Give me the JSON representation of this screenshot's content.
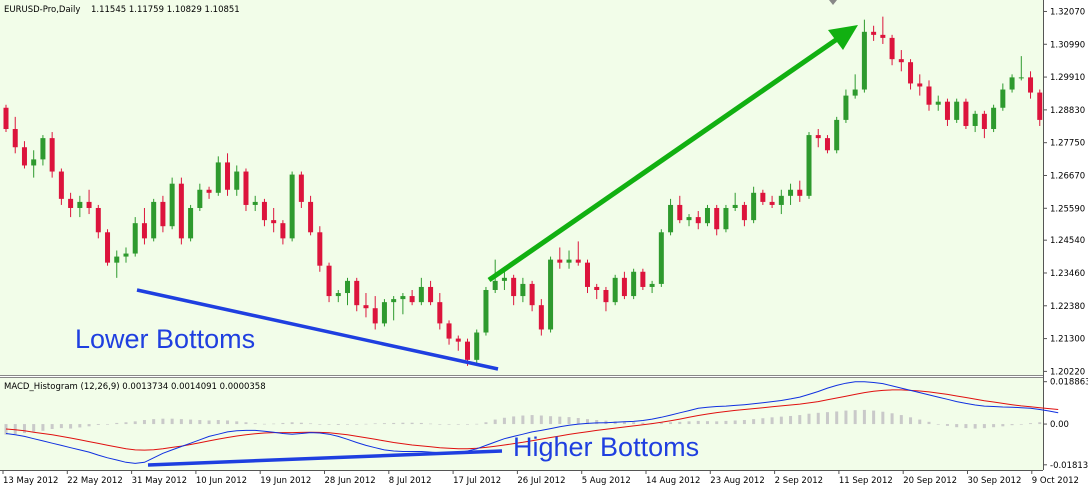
{
  "chart_data": [
    {
      "type": "candlestick",
      "symbol_header": "EURUSD-Pro,Daily",
      "ohlc_header": "1.11545 1.11759 1.10829 1.10851",
      "ylim": [
        1.202,
        1.3225
      ],
      "y_ticks": [
        "1.32070",
        "1.30990",
        "1.29910",
        "1.28830",
        "1.27750",
        "1.26670",
        "1.25590",
        "1.24540",
        "1.23460",
        "1.22380",
        "1.21300",
        "1.20220"
      ],
      "x_ticks": [
        "13 May 2012",
        "22 May 2012",
        "31 May 2012",
        "10 Jun 2012",
        "19 Jun 2012",
        "28 Jun 2012",
        "8 Jul 2012",
        "17 Jul 2012",
        "26 Jul 2012",
        "5 Aug 2012",
        "14 Aug 2012",
        "23 Aug 2012",
        "2 Sep 2012",
        "11 Sep 2012",
        "20 Sep 2012",
        "30 Sep 2012",
        "9 Oct 2012"
      ],
      "up_color": "#2e9a2e",
      "down_color": "#dc143c",
      "candles": [
        [
          1.289,
          1.29,
          1.281,
          1.282
        ],
        [
          1.282,
          1.286,
          1.274,
          1.276
        ],
        [
          1.276,
          1.278,
          1.269,
          1.27
        ],
        [
          1.27,
          1.275,
          1.266,
          1.272
        ],
        [
          1.272,
          1.28,
          1.27,
          1.279
        ],
        [
          1.279,
          1.281,
          1.266,
          1.268
        ],
        [
          1.268,
          1.269,
          1.257,
          1.259
        ],
        [
          1.259,
          1.261,
          1.253,
          1.256
        ],
        [
          1.256,
          1.26,
          1.253,
          1.258
        ],
        [
          1.258,
          1.262,
          1.254,
          1.256
        ],
        [
          1.256,
          1.257,
          1.246,
          1.248
        ],
        [
          1.248,
          1.249,
          1.237,
          1.238
        ],
        [
          1.238,
          1.242,
          1.233,
          1.24
        ],
        [
          1.24,
          1.243,
          1.238,
          1.241
        ],
        [
          1.241,
          1.253,
          1.24,
          1.251
        ],
        [
          1.251,
          1.256,
          1.244,
          1.246
        ],
        [
          1.246,
          1.259,
          1.245,
          1.258
        ],
        [
          1.258,
          1.26,
          1.248,
          1.25
        ],
        [
          1.25,
          1.266,
          1.249,
          1.264
        ],
        [
          1.264,
          1.266,
          1.244,
          1.246
        ],
        [
          1.246,
          1.257,
          1.245,
          1.256
        ],
        [
          1.256,
          1.264,
          1.255,
          1.262
        ],
        [
          1.262,
          1.263,
          1.259,
          1.261
        ],
        [
          1.261,
          1.273,
          1.26,
          1.271
        ],
        [
          1.271,
          1.274,
          1.26,
          1.262
        ],
        [
          1.262,
          1.27,
          1.26,
          1.268
        ],
        [
          1.268,
          1.269,
          1.255,
          1.257
        ],
        [
          1.257,
          1.26,
          1.255,
          1.258
        ],
        [
          1.258,
          1.259,
          1.25,
          1.252
        ],
        [
          1.252,
          1.256,
          1.248,
          1.251
        ],
        [
          1.251,
          1.252,
          1.244,
          1.246
        ],
        [
          1.246,
          1.268,
          1.245,
          1.267
        ],
        [
          1.267,
          1.268,
          1.256,
          1.258
        ],
        [
          1.258,
          1.26,
          1.247,
          1.248
        ],
        [
          1.248,
          1.25,
          1.235,
          1.237
        ],
        [
          1.237,
          1.238,
          1.225,
          1.227
        ],
        [
          1.227,
          1.229,
          1.225,
          1.228
        ],
        [
          1.228,
          1.233,
          1.224,
          1.232
        ],
        [
          1.232,
          1.233,
          1.222,
          1.224
        ],
        [
          1.224,
          1.228,
          1.22,
          1.223
        ],
        [
          1.223,
          1.227,
          1.216,
          1.218
        ],
        [
          1.218,
          1.226,
          1.217,
          1.225
        ],
        [
          1.225,
          1.227,
          1.219,
          1.226
        ],
        [
          1.226,
          1.228,
          1.221,
          1.227
        ],
        [
          1.227,
          1.229,
          1.224,
          1.225
        ],
        [
          1.225,
          1.233,
          1.224,
          1.23
        ],
        [
          1.23,
          1.232,
          1.224,
          1.225
        ],
        [
          1.225,
          1.228,
          1.216,
          1.218
        ],
        [
          1.218,
          1.219,
          1.211,
          1.213
        ],
        [
          1.213,
          1.214,
          1.209,
          1.212
        ],
        [
          1.212,
          1.213,
          1.204,
          1.206
        ],
        [
          1.206,
          1.216,
          1.205,
          1.215
        ],
        [
          1.215,
          1.23,
          1.214,
          1.229
        ],
        [
          1.229,
          1.239,
          1.228,
          1.232
        ],
        [
          1.232,
          1.236,
          1.229,
          1.233
        ],
        [
          1.233,
          1.234,
          1.224,
          1.227
        ],
        [
          1.227,
          1.233,
          1.225,
          1.231
        ],
        [
          1.231,
          1.232,
          1.222,
          1.224
        ],
        [
          1.224,
          1.226,
          1.214,
          1.216
        ],
        [
          1.216,
          1.24,
          1.215,
          1.239
        ],
        [
          1.239,
          1.243,
          1.236,
          1.238
        ],
        [
          1.238,
          1.242,
          1.236,
          1.239
        ],
        [
          1.239,
          1.245,
          1.237,
          1.238
        ],
        [
          1.238,
          1.239,
          1.228,
          1.23
        ],
        [
          1.23,
          1.231,
          1.226,
          1.229
        ],
        [
          1.229,
          1.23,
          1.222,
          1.225
        ],
        [
          1.225,
          1.234,
          1.224,
          1.233
        ],
        [
          1.233,
          1.235,
          1.226,
          1.227
        ],
        [
          1.227,
          1.236,
          1.226,
          1.235
        ],
        [
          1.235,
          1.236,
          1.229,
          1.23
        ],
        [
          1.23,
          1.232,
          1.228,
          1.231
        ],
        [
          1.231,
          1.249,
          1.23,
          1.248
        ],
        [
          1.248,
          1.259,
          1.247,
          1.257
        ],
        [
          1.257,
          1.26,
          1.251,
          1.252
        ],
        [
          1.252,
          1.254,
          1.25,
          1.253
        ],
        [
          1.253,
          1.255,
          1.249,
          1.251
        ],
        [
          1.251,
          1.257,
          1.25,
          1.256
        ],
        [
          1.256,
          1.257,
          1.247,
          1.249
        ],
        [
          1.249,
          1.257,
          1.248,
          1.256
        ],
        [
          1.256,
          1.261,
          1.255,
          1.257
        ],
        [
          1.257,
          1.258,
          1.25,
          1.252
        ],
        [
          1.252,
          1.263,
          1.251,
          1.261
        ],
        [
          1.261,
          1.262,
          1.257,
          1.258
        ],
        [
          1.258,
          1.26,
          1.256,
          1.257
        ],
        [
          1.257,
          1.262,
          1.254,
          1.26
        ],
        [
          1.26,
          1.264,
          1.257,
          1.262
        ],
        [
          1.262,
          1.265,
          1.258,
          1.26
        ],
        [
          1.26,
          1.281,
          1.259,
          1.28
        ],
        [
          1.28,
          1.282,
          1.276,
          1.279
        ],
        [
          1.279,
          1.28,
          1.274,
          1.275
        ],
        [
          1.275,
          1.286,
          1.274,
          1.285
        ],
        [
          1.285,
          1.295,
          1.284,
          1.293
        ],
        [
          1.293,
          1.3,
          1.292,
          1.295
        ],
        [
          1.295,
          1.318,
          1.294,
          1.314
        ],
        [
          1.314,
          1.316,
          1.311,
          1.313
        ],
        [
          1.313,
          1.319,
          1.31,
          1.312
        ],
        [
          1.312,
          1.313,
          1.303,
          1.305
        ],
        [
          1.305,
          1.308,
          1.301,
          1.304
        ],
        [
          1.304,
          1.305,
          1.295,
          1.297
        ],
        [
          1.297,
          1.3,
          1.293,
          1.296
        ],
        [
          1.296,
          1.298,
          1.288,
          1.29
        ],
        [
          1.29,
          1.293,
          1.288,
          1.291
        ],
        [
          1.291,
          1.292,
          1.283,
          1.285
        ],
        [
          1.285,
          1.292,
          1.284,
          1.291
        ],
        [
          1.291,
          1.292,
          1.282,
          1.283
        ],
        [
          1.283,
          1.288,
          1.281,
          1.287
        ],
        [
          1.287,
          1.288,
          1.279,
          1.282
        ],
        [
          1.282,
          1.29,
          1.281,
          1.289
        ],
        [
          1.289,
          1.297,
          1.288,
          1.295
        ],
        [
          1.295,
          1.3,
          1.294,
          1.299
        ],
        [
          1.299,
          1.306,
          1.298,
          1.299
        ],
        [
          1.299,
          1.301,
          1.292,
          1.294
        ],
        [
          1.294,
          1.295,
          1.283,
          1.285
        ],
        [
          1.285,
          1.29,
          1.281,
          1.286
        ],
        [
          1.286,
          1.296,
          1.284,
          1.294
        ]
      ],
      "annotations": [
        {
          "text": "Lower Bottoms",
          "color": "#1f3fe0"
        },
        {
          "trend": "up",
          "color": "#11b011"
        }
      ]
    },
    {
      "type": "histogram_line",
      "header": "MACD_Histogram (12,26,9) 0.0013734 0.0014091 0.0000358",
      "ylim": [
        -0.02,
        0.0205
      ],
      "y_ticks": [
        "0.0188631",
        "0.00",
        "-0.0181325"
      ],
      "histogram": [
        -0.0047,
        -0.0045,
        -0.004,
        -0.0034,
        -0.003,
        -0.0022,
        -0.0018,
        -0.002,
        -0.0015,
        -0.001,
        -0.0004,
        -0.0001,
        0.0005,
        0.0008,
        0.0012,
        0.0018,
        0.0022,
        0.0024,
        0.0024,
        0.0022,
        0.002,
        0.0018,
        0.0016,
        0.0018,
        0.0016,
        0.0012,
        0.0008,
        0.0004,
        0.0001,
        0.0002,
        0.0005,
        0.0008,
        0.0006,
        0.0003,
        0.0,
        -0.0002,
        -0.0004,
        -0.0002,
        -0.0001,
        0.0001,
        0.0003,
        0.0004,
        0.0005,
        0.0006,
        0.0006,
        0.0005,
        0.0002,
        -0.0001,
        -0.0002,
        -0.0002,
        -0.0001,
        0.0001,
        0.0008,
        0.002,
        0.0028,
        0.0034,
        0.0038,
        0.004,
        0.0038,
        0.0035,
        0.0033,
        0.0031,
        0.0027,
        0.0022,
        0.0018,
        0.0015,
        0.0012,
        0.001,
        0.0008,
        0.0006,
        0.0005,
        0.0006,
        0.0008,
        0.001,
        0.0012,
        0.0014,
        0.0013,
        0.0012,
        0.0014,
        0.0016,
        0.0018,
        0.0022,
        0.0026,
        0.003,
        0.0033,
        0.0036,
        0.004,
        0.0046,
        0.005,
        0.0053,
        0.0056,
        0.006,
        0.0062,
        0.0063,
        0.006,
        0.0055,
        0.0048,
        0.004,
        0.003,
        0.002,
        0.001,
        0.0,
        -0.0008,
        -0.0014,
        -0.0018,
        -0.002,
        -0.0018,
        -0.0014,
        -0.001,
        -0.0005,
        0.0,
        0.0004,
        0.0008,
        0.001,
        0.0012
      ],
      "line_blue": [
        -0.0042,
        -0.0048,
        -0.0055,
        -0.0065,
        -0.0075,
        -0.0085,
        -0.0095,
        -0.0105,
        -0.0115,
        -0.0125,
        -0.0138,
        -0.015,
        -0.016,
        -0.017,
        -0.0175,
        -0.017,
        -0.015,
        -0.013,
        -0.0115,
        -0.01,
        -0.0085,
        -0.007,
        -0.0055,
        -0.0045,
        -0.0035,
        -0.003,
        -0.0028,
        -0.0028,
        -0.0032,
        -0.0036,
        -0.0042,
        -0.0045,
        -0.0042,
        -0.0038,
        -0.004,
        -0.0045,
        -0.0055,
        -0.0068,
        -0.0082,
        -0.0095,
        -0.0105,
        -0.0115,
        -0.012,
        -0.0122,
        -0.0122,
        -0.0122,
        -0.0125,
        -0.0128,
        -0.013,
        -0.0128,
        -0.012,
        -0.011,
        -0.0095,
        -0.008,
        -0.0065,
        -0.0055,
        -0.0045,
        -0.0035,
        -0.0028,
        -0.002,
        -0.0012,
        -0.0005,
        0.0,
        0.0003,
        0.0005,
        0.0006,
        0.0008,
        0.001,
        0.0012,
        0.0016,
        0.0022,
        0.003,
        0.004,
        0.005,
        0.006,
        0.007,
        0.0075,
        0.0078,
        0.008,
        0.0083,
        0.0086,
        0.009,
        0.0095,
        0.01,
        0.0105,
        0.0112,
        0.012,
        0.0132,
        0.0145,
        0.016,
        0.0172,
        0.0182,
        0.0188,
        0.0188,
        0.0185,
        0.018,
        0.017,
        0.016,
        0.015,
        0.014,
        0.013,
        0.012,
        0.011,
        0.01,
        0.0092,
        0.0085,
        0.008,
        0.0078,
        0.0076,
        0.0075,
        0.0073,
        0.007,
        0.0065,
        0.0058,
        0.005
      ],
      "line_red": [
        -0.0022,
        -0.0025,
        -0.003,
        -0.0036,
        -0.0042,
        -0.0048,
        -0.0055,
        -0.0062,
        -0.007,
        -0.0078,
        -0.0086,
        -0.0094,
        -0.0102,
        -0.011,
        -0.0115,
        -0.0116,
        -0.0114,
        -0.011,
        -0.0104,
        -0.0098,
        -0.0091,
        -0.0083,
        -0.0075,
        -0.0067,
        -0.006,
        -0.0053,
        -0.0048,
        -0.0043,
        -0.004,
        -0.0038,
        -0.0038,
        -0.0038,
        -0.0037,
        -0.0036,
        -0.0037,
        -0.0039,
        -0.0043,
        -0.0048,
        -0.0054,
        -0.0061,
        -0.0068,
        -0.0075,
        -0.0082,
        -0.0088,
        -0.0093,
        -0.0097,
        -0.0101,
        -0.0105,
        -0.0108,
        -0.011,
        -0.011,
        -0.0108,
        -0.0104,
        -0.0099,
        -0.0093,
        -0.0087,
        -0.0081,
        -0.0074,
        -0.0067,
        -0.006,
        -0.0053,
        -0.0046,
        -0.004,
        -0.0034,
        -0.0028,
        -0.0023,
        -0.0018,
        -0.0013,
        -0.0008,
        -0.0003,
        0.0002,
        0.0008,
        0.0015,
        0.0022,
        0.003,
        0.0038,
        0.0045,
        0.0051,
        0.0056,
        0.0061,
        0.0065,
        0.0069,
        0.0073,
        0.0077,
        0.0081,
        0.0085,
        0.0089,
        0.0094,
        0.01,
        0.0108,
        0.0116,
        0.0124,
        0.0132,
        0.014,
        0.0146,
        0.015,
        0.0152,
        0.0152,
        0.015,
        0.0147,
        0.0143,
        0.0138,
        0.0132,
        0.0125,
        0.0118,
        0.0111,
        0.0104,
        0.0098,
        0.0092,
        0.0086,
        0.0081,
        0.0077,
        0.0073,
        0.0069,
        0.0065
      ],
      "annotations": [
        {
          "text": "Higher Bottoms",
          "color": "#1f3fe0"
        }
      ]
    }
  ]
}
